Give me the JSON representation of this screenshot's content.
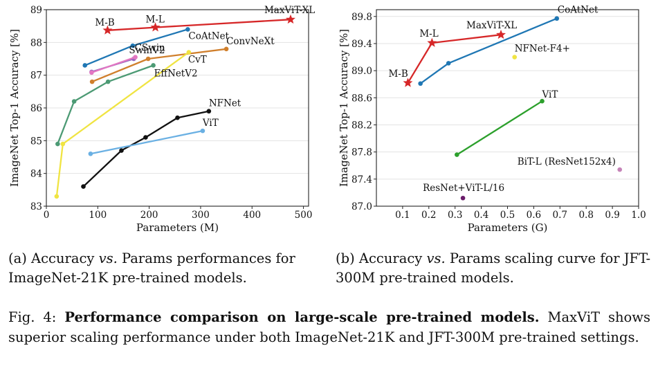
{
  "chart_data": [
    {
      "type": "line",
      "xlabel": "Parameters (M)",
      "ylabel": "ImageNet Top-1 Accuracy [%]",
      "xlim": [
        0,
        510
      ],
      "ylim": [
        83,
        89
      ],
      "xticks": [
        0,
        100,
        200,
        300,
        400,
        500
      ],
      "yticks": [
        83,
        84,
        85,
        86,
        87,
        88,
        89
      ],
      "grid": true,
      "series": [
        {
          "name": "MaxViT-XL",
          "color": "#d62728",
          "marker": "star",
          "x": [
            119,
            212,
            475
          ],
          "y": [
            88.37,
            88.46,
            88.7
          ]
        },
        {
          "name": "CoAtNet",
          "color": "#1f77b4",
          "marker": "circle",
          "x": [
            75,
            168,
            275
          ],
          "y": [
            87.3,
            87.9,
            88.4
          ]
        },
        {
          "name": "SwinV2",
          "color": "#9467bd",
          "marker": "circle",
          "x": [
            88,
            170
          ],
          "y": [
            87.1,
            87.5
          ]
        },
        {
          "name": "CSwin",
          "color": "#e377c2",
          "marker": "circle",
          "x": [
            88,
            173
          ],
          "y": [
            87.08,
            87.55
          ]
        },
        {
          "name": "ConvNeXt",
          "color": "#d07f2c",
          "marker": "circle",
          "x": [
            89,
            198,
            350
          ],
          "y": [
            86.8,
            87.5,
            87.8
          ]
        },
        {
          "name": "CvT",
          "color": "#f0e442",
          "marker": "circle",
          "x": [
            20,
            32,
            277
          ],
          "y": [
            83.3,
            84.9,
            87.7
          ]
        },
        {
          "name": "EffNetV2",
          "color": "#4c9a74",
          "marker": "circle",
          "x": [
            22,
            54,
            120,
            208
          ],
          "y": [
            84.9,
            86.2,
            86.8,
            87.3
          ]
        },
        {
          "name": "NFNet",
          "color": "#111111",
          "marker": "circle",
          "x": [
            72,
            146,
            193,
            255,
            316
          ],
          "y": [
            83.6,
            84.7,
            85.1,
            85.7,
            85.9
          ]
        },
        {
          "name": "ViT",
          "color": "#6ab0e3",
          "marker": "circle",
          "x": [
            86,
            304
          ],
          "y": [
            84.6,
            85.3
          ]
        }
      ],
      "annotations": [
        {
          "text": "M-B",
          "x": 119,
          "y": 88.37
        },
        {
          "text": "M-L",
          "x": 212,
          "y": 88.46
        },
        {
          "text": "MaxViT-XL",
          "x": 475,
          "y": 88.7
        },
        {
          "text": "CoAtNet",
          "x": 275,
          "y": 88.4
        },
        {
          "text": "SwinV2",
          "x": 170,
          "y": 87.5
        },
        {
          "text": "CSwin",
          "x": 173,
          "y": 87.55
        },
        {
          "text": "ConvNeXt",
          "x": 350,
          "y": 87.8
        },
        {
          "text": "CvT",
          "x": 277,
          "y": 87.7
        },
        {
          "text": "EffNetV2",
          "x": 208,
          "y": 87.3
        },
        {
          "text": "NFNet",
          "x": 316,
          "y": 85.9
        },
        {
          "text": "ViT",
          "x": 304,
          "y": 85.3
        }
      ]
    },
    {
      "type": "line",
      "xlabel": "Parameters (G)",
      "ylabel": "ImageNet Top-1 Accuracy [%]",
      "xlim": [
        0,
        1.0
      ],
      "ylim": [
        87.0,
        89.9
      ],
      "xticks": [
        0.1,
        0.2,
        0.3,
        0.4,
        0.5,
        0.6,
        0.7,
        0.8,
        0.9,
        1.0
      ],
      "yticks": [
        87.0,
        87.4,
        87.8,
        88.2,
        88.6,
        89.0,
        89.4,
        89.8
      ],
      "grid": true,
      "series": [
        {
          "name": "MaxViT-XL",
          "color": "#d62728",
          "marker": "star",
          "x": [
            0.12,
            0.212,
            0.475
          ],
          "y": [
            88.82,
            89.41,
            89.53
          ]
        },
        {
          "name": "CoAtNet",
          "color": "#1f77b4",
          "marker": "circle",
          "x": [
            0.168,
            0.275,
            0.688
          ],
          "y": [
            88.81,
            89.11,
            89.77
          ]
        },
        {
          "name": "NFNet-F4+",
          "color": "#f0e442",
          "marker": "circle",
          "x": [
            0.527
          ],
          "y": [
            89.2
          ]
        },
        {
          "name": "ViT",
          "color": "#2ca02c",
          "marker": "circle",
          "x": [
            0.307,
            0.632
          ],
          "y": [
            87.76,
            88.55
          ]
        },
        {
          "name": "BiT-L (ResNet152x4)",
          "color": "#c583b8",
          "marker": "circle",
          "x": [
            0.928
          ],
          "y": [
            87.54
          ]
        },
        {
          "name": "ResNet+ViT-L/16",
          "color": "#6a1b6a",
          "marker": "circle",
          "x": [
            0.33
          ],
          "y": [
            87.12
          ]
        }
      ],
      "annotations": [
        {
          "text": "M-B",
          "x": 0.12,
          "y": 88.82
        },
        {
          "text": "M-L",
          "x": 0.212,
          "y": 89.41
        },
        {
          "text": "MaxViT-XL",
          "x": 0.475,
          "y": 89.53
        },
        {
          "text": "CoAtNet",
          "x": 0.688,
          "y": 89.77
        },
        {
          "text": "NFNet-F4+",
          "x": 0.527,
          "y": 89.2
        },
        {
          "text": "ViT",
          "x": 0.632,
          "y": 88.55
        },
        {
          "text": "BiT-L (ResNet152x4)",
          "x": 0.928,
          "y": 87.54
        },
        {
          "text": "ResNet+ViT-L/16",
          "x": 0.33,
          "y": 87.12
        }
      ]
    }
  ],
  "captions": {
    "a_prefix": "(a) Accuracy ",
    "a_vs": "vs.",
    "a_suffix": " Params performances for ImageNet-21K pre-trained models.",
    "b_prefix": "(b) Accuracy ",
    "b_vs": "vs.",
    "b_suffix": " Params scaling curve for JFT-300M pre-trained models.",
    "fig_label": "Fig. 4: ",
    "fig_bold": "Performance comparison on large-scale pre-trained models.",
    "fig_text": " MaxViT shows superior scaling performance under both ImageNet-21K and JFT-300M pre-trained settings."
  }
}
